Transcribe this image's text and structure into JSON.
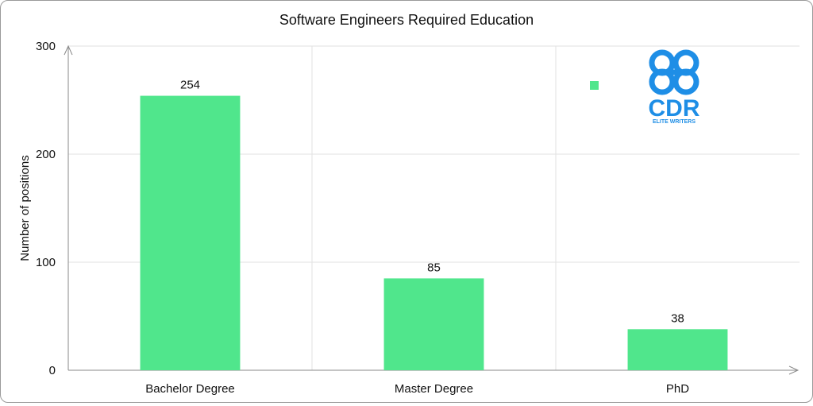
{
  "chart_data": {
    "type": "bar",
    "title": "Software Engineers Required Education",
    "xlabel": "",
    "ylabel": "Number of positions",
    "categories": [
      "Bachelor Degree",
      "Master Degree",
      "PhD"
    ],
    "values": [
      254,
      85,
      38
    ],
    "data_labels": [
      "254",
      "85",
      "38"
    ],
    "ylim": [
      0,
      300
    ],
    "yticks": [
      0,
      100,
      200,
      300
    ],
    "grid": true,
    "bar_color": "#50e68c",
    "legend": {
      "placement": "top-right",
      "entries": [
        ""
      ]
    }
  },
  "logo": {
    "icon": "clover-knot-logo-icon",
    "wordmark": "CDR",
    "tagline": "ELITE WRITERS",
    "color": "#1e8ee6"
  }
}
